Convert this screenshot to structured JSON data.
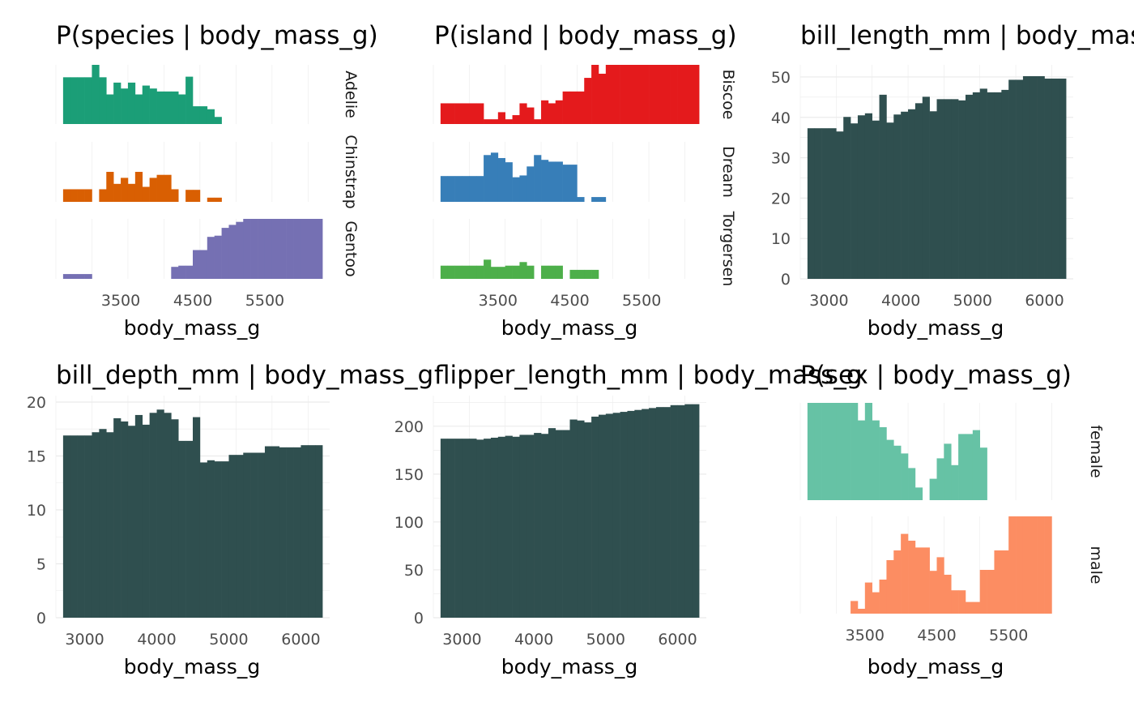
{
  "chart_data": [
    {
      "type": "bar",
      "title": "P(species | body_mass_g)",
      "xlabel": "body_mass_g",
      "ylabel": "",
      "xlim": [
        2600,
        6400
      ],
      "xticks": [
        3500,
        4500,
        5500
      ],
      "facets": [
        {
          "name": "Adelie",
          "color": "#1B9E77",
          "x": [
            2700,
            2800,
            2900,
            3000,
            3100,
            3200,
            3300,
            3400,
            3500,
            3600,
            3700,
            3800,
            3900,
            4000,
            4100,
            4200,
            4300,
            4400,
            4500,
            4600,
            4700,
            4800
          ],
          "values": [
            0.79,
            0.79,
            0.79,
            0.79,
            1.0,
            0.79,
            0.5,
            0.7,
            0.6,
            0.7,
            0.5,
            0.65,
            0.6,
            0.55,
            0.55,
            0.55,
            0.5,
            0.8,
            0.3,
            0.3,
            0.25,
            0.12
          ]
        },
        {
          "name": "Chinstrap",
          "color": "#D95F02",
          "x": [
            2700,
            2800,
            2900,
            3000,
            3100,
            3200,
            3300,
            3400,
            3500,
            3600,
            3700,
            3800,
            3900,
            4000,
            4100,
            4200,
            4300,
            4400,
            4500,
            4600,
            4700,
            4800
          ],
          "values": [
            0.21,
            0.21,
            0.21,
            0.21,
            0,
            0.21,
            0.5,
            0.3,
            0.4,
            0.3,
            0.5,
            0.25,
            0.4,
            0.45,
            0.45,
            0.21,
            0,
            0.2,
            0.2,
            0,
            0.07,
            0.07
          ]
        },
        {
          "name": "Gentoo",
          "color": "#7570B3",
          "x": [
            2700,
            2800,
            2900,
            3000,
            3100,
            3200,
            3300,
            3400,
            3500,
            3600,
            3700,
            3800,
            3900,
            4000,
            4100,
            4200,
            4300,
            4400,
            4500,
            4600,
            4700,
            4800,
            4900,
            5000,
            5100,
            5200,
            5300,
            5400,
            5500,
            5600,
            5700,
            5800,
            5900,
            6000,
            6100,
            6200
          ],
          "values": [
            0.08,
            0.08,
            0.08,
            0.08,
            0,
            0,
            0,
            0,
            0,
            0,
            0,
            0,
            0,
            0,
            0,
            0.2,
            0.22,
            0.22,
            0.48,
            0.48,
            0.7,
            0.72,
            0.85,
            0.9,
            0.95,
            1,
            1,
            1,
            1,
            1,
            1,
            1,
            1,
            1,
            1,
            1
          ]
        }
      ]
    },
    {
      "type": "bar",
      "title": "P(island | body_mass_g)",
      "xlabel": "body_mass_g",
      "ylabel": "",
      "xlim": [
        2600,
        6400
      ],
      "xticks": [
        3500,
        4500,
        5500
      ],
      "facets": [
        {
          "name": "Biscoe",
          "color": "#E41A1C",
          "x": [
            2700,
            2800,
            2900,
            3000,
            3100,
            3200,
            3300,
            3400,
            3500,
            3600,
            3700,
            3800,
            3900,
            4000,
            4100,
            4200,
            4300,
            4400,
            4500,
            4600,
            4700,
            4800,
            4900,
            5000,
            5100,
            5200,
            5300,
            5400,
            5500,
            5600,
            5700,
            5800,
            5900,
            6000,
            6100,
            6200
          ],
          "values": [
            0.35,
            0.35,
            0.35,
            0.35,
            0.35,
            0.35,
            0.08,
            0.08,
            0.2,
            0.08,
            0.15,
            0.35,
            0.28,
            0.08,
            0.4,
            0.35,
            0.4,
            0.55,
            0.55,
            0.55,
            0.78,
            1,
            0.85,
            1,
            1,
            1,
            1,
            1,
            1,
            1,
            1,
            1,
            1,
            1,
            1,
            1
          ]
        },
        {
          "name": "Dream",
          "color": "#377EB8",
          "x": [
            2700,
            2800,
            2900,
            3000,
            3100,
            3200,
            3300,
            3400,
            3500,
            3600,
            3700,
            3800,
            3900,
            4000,
            4100,
            4200,
            4300,
            4400,
            4500,
            4600,
            4700,
            4800,
            4900
          ],
          "values": [
            0.43,
            0.43,
            0.43,
            0.43,
            0.43,
            0.43,
            0.78,
            0.82,
            0.73,
            0.66,
            0.41,
            0.44,
            0.59,
            0.78,
            0.7,
            0.67,
            0.67,
            0.62,
            0.62,
            0.08,
            0,
            0.08,
            0.08
          ]
        },
        {
          "name": "Torgersen",
          "color": "#4DAF4A",
          "x": [
            2700,
            2800,
            2900,
            3000,
            3100,
            3200,
            3300,
            3400,
            3500,
            3600,
            3700,
            3800,
            3900,
            4000,
            4100,
            4200,
            4300,
            4400,
            4500,
            4600,
            4700,
            4800
          ],
          "values": [
            0.22,
            0.22,
            0.22,
            0.22,
            0.22,
            0.22,
            0.32,
            0.2,
            0.2,
            0.22,
            0.22,
            0.28,
            0.22,
            0,
            0.22,
            0.22,
            0.22,
            0,
            0.15,
            0.15,
            0.15,
            0.15
          ]
        }
      ]
    },
    {
      "type": "bar",
      "title": "bill_length_mm | body_mass_g",
      "xlabel": "body_mass_g",
      "ylabel": "",
      "xlim": [
        2600,
        6400
      ],
      "ylim": [
        0,
        53
      ],
      "xticks": [
        3000,
        4000,
        5000,
        6000
      ],
      "yticks": [
        0,
        10,
        20,
        30,
        40,
        50
      ],
      "color": "#2F4F4F",
      "x": [
        2700,
        2800,
        2900,
        3000,
        3100,
        3200,
        3300,
        3400,
        3500,
        3600,
        3700,
        3800,
        3900,
        4000,
        4100,
        4200,
        4300,
        4400,
        4500,
        4600,
        4700,
        4800,
        4900,
        5000,
        5100,
        5200,
        5300,
        5400,
        5500,
        5600,
        5700,
        5800,
        5900,
        6000,
        6100,
        6200
      ],
      "values": [
        37.3,
        37.3,
        37.3,
        37.3,
        36.5,
        40.1,
        38.5,
        40.5,
        41.0,
        39.2,
        45.6,
        38.7,
        40.7,
        41.4,
        42.0,
        43.5,
        45.1,
        41.5,
        44.5,
        44.5,
        44.5,
        44.2,
        45.6,
        46.2,
        47.1,
        46.2,
        46.2,
        46.8,
        49.3,
        49.3,
        50.2,
        50.2,
        50.2,
        49.6,
        49.6,
        49.6
      ]
    },
    {
      "type": "bar",
      "title": "bill_depth_mm | body_mass_g",
      "xlabel": "body_mass_g",
      "ylabel": "",
      "xlim": [
        2600,
        6400
      ],
      "ylim": [
        0,
        20.6
      ],
      "xticks": [
        3000,
        4000,
        5000,
        6000
      ],
      "yticks": [
        0,
        5,
        10,
        15,
        20
      ],
      "color": "#2F4F4F",
      "x": [
        2700,
        2800,
        2900,
        3000,
        3100,
        3200,
        3300,
        3400,
        3500,
        3600,
        3700,
        3800,
        3900,
        4000,
        4100,
        4200,
        4300,
        4400,
        4500,
        4600,
        4700,
        4800,
        4900,
        5000,
        5100,
        5200,
        5300,
        5400,
        5500,
        5600,
        5700,
        5800,
        5900,
        6000,
        6100,
        6200
      ],
      "values": [
        16.9,
        16.9,
        16.9,
        16.9,
        17.2,
        17.5,
        17.2,
        18.5,
        18.2,
        17.8,
        18.8,
        17.9,
        19.0,
        19.3,
        19.0,
        18.4,
        16.4,
        16.4,
        18.6,
        14.4,
        14.6,
        14.5,
        14.5,
        15.1,
        15.1,
        15.3,
        15.3,
        15.3,
        15.9,
        15.9,
        15.8,
        15.8,
        15.8,
        16.0,
        16.0,
        16.0
      ]
    },
    {
      "type": "bar",
      "title": "flipper_length_mm | body_mass_g",
      "xlabel": "body_mass_g",
      "ylabel": "",
      "xlim": [
        2600,
        6400
      ],
      "ylim": [
        0,
        232
      ],
      "xticks": [
        3000,
        4000,
        5000,
        6000
      ],
      "yticks": [
        0,
        50,
        100,
        150,
        200
      ],
      "color": "#2F4F4F",
      "x": [
        2700,
        2800,
        2900,
        3000,
        3100,
        3200,
        3300,
        3400,
        3500,
        3600,
        3700,
        3800,
        3900,
        4000,
        4100,
        4200,
        4300,
        4400,
        4500,
        4600,
        4700,
        4800,
        4900,
        5000,
        5100,
        5200,
        5300,
        5400,
        5500,
        5600,
        5700,
        5800,
        5900,
        6000,
        6100,
        6200
      ],
      "values": [
        187,
        187,
        187,
        187,
        187,
        186,
        187,
        188,
        189,
        190,
        189,
        191,
        191,
        193,
        192,
        198,
        196,
        196,
        207,
        206,
        204,
        210,
        212,
        213,
        214,
        215,
        216,
        217,
        218,
        219,
        220,
        220,
        222,
        222,
        223,
        223
      ]
    },
    {
      "type": "bar",
      "title": "P(sex | body_mass_g)",
      "xlabel": "body_mass_g",
      "ylabel": "",
      "xlim": [
        2600,
        6400
      ],
      "xticks": [
        3500,
        4500,
        5500
      ],
      "facets": [
        {
          "name": "female",
          "color": "#66C2A5",
          "x": [
            2700,
            2800,
            2900,
            3000,
            3100,
            3200,
            3300,
            3400,
            3500,
            3600,
            3700,
            3800,
            3900,
            4000,
            4100,
            4200,
            4300,
            4400,
            4500,
            4600,
            4700,
            4800,
            4900,
            5000,
            5100
          ],
          "values": [
            1,
            1,
            1,
            1,
            1,
            1,
            1,
            0.82,
            1,
            0.82,
            0.75,
            0.62,
            0.56,
            0.48,
            0.33,
            0.13,
            0,
            0.22,
            0.43,
            0.58,
            0.36,
            0.68,
            0.68,
            0.72,
            0.54
          ]
        },
        {
          "name": "male",
          "color": "#FC8D62",
          "x": [
            3300,
            3400,
            3500,
            3600,
            3700,
            3800,
            3900,
            4000,
            4100,
            4200,
            4300,
            4400,
            4500,
            4600,
            4700,
            4800,
            4900,
            5000,
            5100,
            5200,
            5300,
            5400,
            5500,
            5600,
            5700,
            5800,
            5900,
            6000
          ],
          "values": [
            0.13,
            0.05,
            0.32,
            0.22,
            0.35,
            0.55,
            0.65,
            0.82,
            0.75,
            0.68,
            0.68,
            0.44,
            0.58,
            0.4,
            0.24,
            0.24,
            0.12,
            0.12,
            0.45,
            0.45,
            0.65,
            0.65,
            1,
            1,
            1,
            1,
            1,
            1
          ]
        }
      ]
    }
  ]
}
